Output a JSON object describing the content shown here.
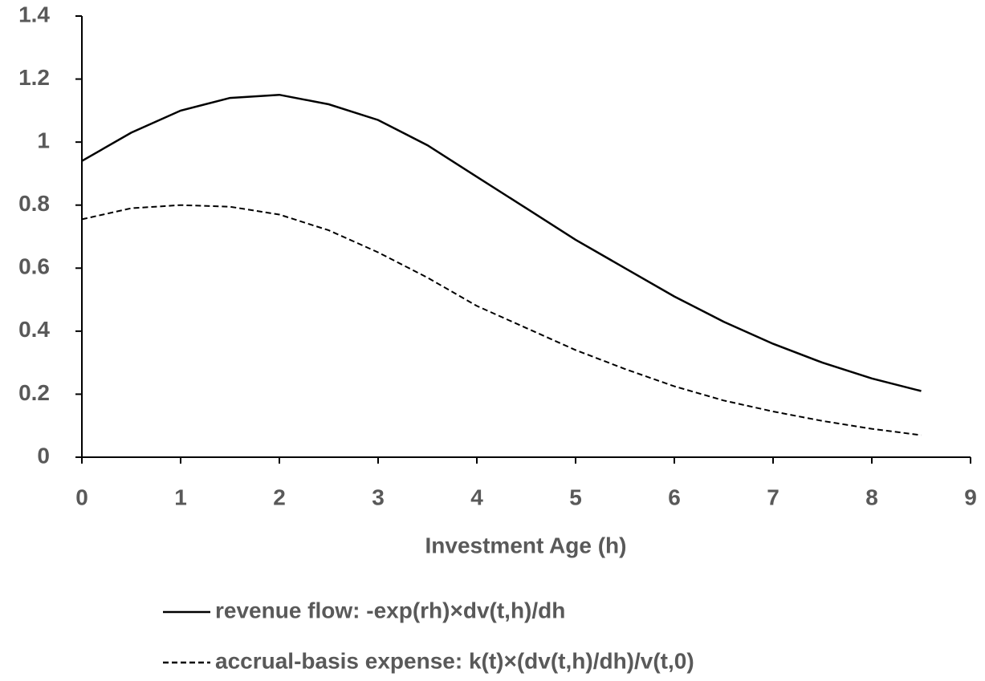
{
  "chart_data": {
    "type": "line",
    "x_label": "Investment Age (h)",
    "x": [
      0,
      0.5,
      1,
      1.5,
      2,
      2.5,
      3,
      3.5,
      4,
      4.5,
      5,
      5.5,
      6,
      6.5,
      7,
      7.5,
      8,
      8.5
    ],
    "series": [
      {
        "name": "revenue flow: -exp(rh)×dv(t,h)/dh",
        "color": "#000000",
        "style": "solid",
        "values": [
          0.94,
          1.03,
          1.1,
          1.14,
          1.15,
          1.12,
          1.07,
          0.99,
          0.89,
          0.79,
          0.69,
          0.6,
          0.51,
          0.43,
          0.36,
          0.3,
          0.25,
          0.21
        ]
      },
      {
        "name": "accrual-basis expense: k(t)×(dv(t,h)/dh)/v(t,0)",
        "color": "#000000",
        "style": "dashed",
        "values": [
          0.755,
          0.79,
          0.8,
          0.795,
          0.77,
          0.72,
          0.65,
          0.57,
          0.48,
          0.41,
          0.34,
          0.28,
          0.225,
          0.18,
          0.145,
          0.115,
          0.09,
          0.07
        ]
      }
    ],
    "xlim": [
      0,
      9
    ],
    "xticks": [
      0,
      1,
      2,
      3,
      4,
      5,
      6,
      7,
      8,
      9
    ],
    "ylim": [
      0,
      1.4
    ],
    "yticks": [
      0,
      0.2,
      0.4,
      0.6,
      0.8,
      1,
      1.2,
      1.4
    ],
    "grid": false,
    "legend": "bottom"
  }
}
